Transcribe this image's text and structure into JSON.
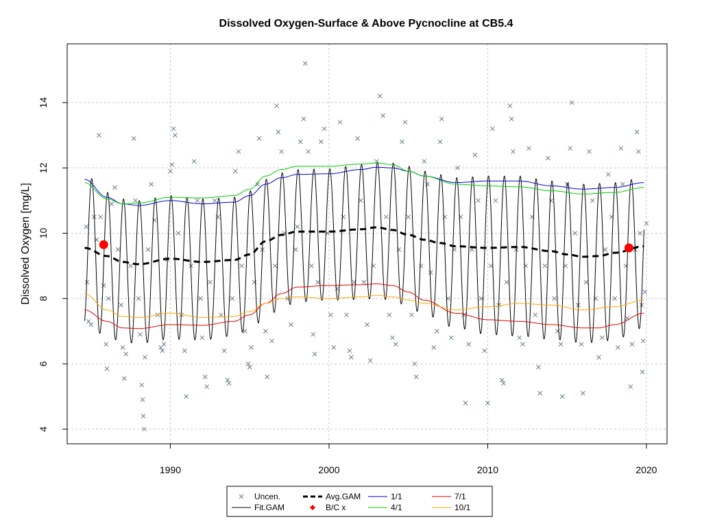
{
  "chart_data": {
    "type": "line",
    "title": "Dissolved Oxygen-Surface & Above Pycnocline at CB5.4",
    "xlabel": "",
    "ylabel": "Dissolved Oxygen [mg/L]",
    "xlim": [
      1983.5,
      2021.3
    ],
    "ylim": [
      3.55,
      15.8
    ],
    "x_ticks": [
      1990,
      2000,
      2010,
      2020
    ],
    "y_ticks": [
      4,
      6,
      8,
      10,
      12,
      14
    ],
    "grid": true,
    "legend_position": "bottom-outside",
    "legend": [
      {
        "label": "Uncen.",
        "style": "cross",
        "color": "#6b7a8a"
      },
      {
        "label": "Fit.GAM",
        "style": "line",
        "color": "#000000"
      },
      {
        "label": "Avg.GAM",
        "style": "dashed-thick",
        "color": "#000000"
      },
      {
        "label": "B/C x",
        "style": "diamond",
        "color": "#ff0000"
      },
      {
        "label": "1/1",
        "style": "line",
        "color": "#0000cc"
      },
      {
        "label": "4/1",
        "style": "line",
        "color": "#00cc00"
      },
      {
        "label": "7/1",
        "style": "line",
        "color": "#dd0000"
      },
      {
        "label": "10/1",
        "style": "line",
        "color": "#ffa500"
      }
    ],
    "colors": {
      "uncen": "#6b7a8a",
      "fit": "#000000",
      "avg": "#000000",
      "bc": "#ff0000",
      "jan": "#0000cc",
      "apr": "#00cc00",
      "jul": "#dd0000",
      "oct": "#ffa500",
      "grid": "#c8c8c8"
    },
    "fit_range": [
      1984.6,
      2019.85
    ],
    "avg_gam": {
      "x": [
        1984.6,
        1986,
        1987,
        1988,
        1990,
        1992,
        1994,
        1995,
        1996,
        1997,
        1998,
        2000,
        2002,
        2003,
        2004,
        2005,
        2006,
        2007,
        2008,
        2010,
        2012,
        2014,
        2015,
        2016,
        2017,
        2018,
        2019.85
      ],
      "y": [
        9.55,
        9.3,
        9.12,
        9.05,
        9.22,
        9.12,
        9.18,
        9.35,
        9.75,
        9.95,
        10.05,
        10.05,
        10.12,
        10.18,
        10.1,
        9.95,
        9.8,
        9.7,
        9.6,
        9.55,
        9.58,
        9.45,
        9.35,
        9.28,
        9.3,
        9.4,
        9.6
      ]
    },
    "series": [
      {
        "name": "1/1",
        "x": [
          1984.6,
          1986,
          1987,
          1988,
          1990,
          1992,
          1994,
          1995,
          1996,
          1997,
          1998,
          2000,
          2002,
          2003,
          2004,
          2005,
          2006,
          2008,
          2010,
          2012,
          2014,
          2016,
          2018,
          2019.85
        ],
        "y": [
          11.65,
          11.1,
          10.9,
          10.85,
          11.0,
          10.9,
          10.95,
          11.15,
          11.5,
          11.7,
          11.8,
          11.82,
          11.95,
          12.02,
          12.0,
          11.9,
          11.75,
          11.55,
          11.6,
          11.6,
          11.45,
          11.35,
          11.4,
          11.55
        ]
      },
      {
        "name": "4/1",
        "x": [
          1984.6,
          1986,
          1987,
          1988,
          1990,
          1992,
          1994,
          1995,
          1996,
          1997,
          1998,
          2000,
          2002,
          2003,
          2004,
          2005,
          2006,
          2008,
          2010,
          2012,
          2014,
          2016,
          2018,
          2019.85
        ],
        "y": [
          11.55,
          11.05,
          10.9,
          10.92,
          11.1,
          11.08,
          11.15,
          11.35,
          11.75,
          11.95,
          12.05,
          12.05,
          12.12,
          12.15,
          12.1,
          11.9,
          11.75,
          11.5,
          11.45,
          11.42,
          11.3,
          11.2,
          11.25,
          11.4
        ]
      },
      {
        "name": "7/1",
        "x": [
          1984.6,
          1986,
          1987,
          1988,
          1990,
          1992,
          1994,
          1995,
          1996,
          1997,
          1998,
          2000,
          2002,
          2003,
          2004,
          2005,
          2006,
          2008,
          2010,
          2012,
          2014,
          2016,
          2017,
          2018,
          2019.85
        ],
        "y": [
          7.65,
          7.3,
          7.1,
          7.08,
          7.2,
          7.18,
          7.3,
          7.5,
          7.85,
          8.15,
          8.35,
          8.4,
          8.42,
          8.45,
          8.4,
          8.2,
          7.95,
          7.55,
          7.35,
          7.3,
          7.2,
          7.1,
          7.1,
          7.2,
          7.55
        ]
      },
      {
        "name": "10/1",
        "x": [
          1984.6,
          1986,
          1987,
          1988,
          1990,
          1992,
          1994,
          1995,
          1996,
          1997,
          1998,
          2000,
          2002,
          2003,
          2004,
          2005,
          2006,
          2008,
          2010,
          2012,
          2014,
          2016,
          2018,
          2019.85
        ],
        "y": [
          8.15,
          7.65,
          7.45,
          7.42,
          7.55,
          7.42,
          7.45,
          7.6,
          7.85,
          8.0,
          8.05,
          8.0,
          8.05,
          8.1,
          8.05,
          7.95,
          7.85,
          7.65,
          7.75,
          7.85,
          7.8,
          7.65,
          7.75,
          7.95
        ]
      }
    ],
    "bc_points": [
      {
        "x": 1985.8,
        "y": 9.65
      },
      {
        "x": 2018.9,
        "y": 9.55
      }
    ],
    "uncen_points": [
      [
        1984.7,
        10.2
      ],
      [
        1984.75,
        8.5
      ],
      [
        1984.85,
        7.3
      ],
      [
        1985.0,
        7.2
      ],
      [
        1985.2,
        10.5
      ],
      [
        1985.35,
        9.8
      ],
      [
        1985.5,
        13.0
      ],
      [
        1985.6,
        10.5
      ],
      [
        1985.8,
        8.4
      ],
      [
        1985.95,
        6.6
      ],
      [
        1986.0,
        5.85
      ],
      [
        1986.1,
        8.0
      ],
      [
        1986.3,
        10.9
      ],
      [
        1986.5,
        11.4
      ],
      [
        1986.7,
        9.5
      ],
      [
        1986.9,
        7.8
      ],
      [
        1987.0,
        6.5
      ],
      [
        1987.1,
        5.55
      ],
      [
        1987.2,
        6.3
      ],
      [
        1987.5,
        9.0
      ],
      [
        1987.7,
        12.9
      ],
      [
        1987.8,
        11.0
      ],
      [
        1988.0,
        8.0
      ],
      [
        1988.1,
        6.9
      ],
      [
        1988.2,
        5.35
      ],
      [
        1988.25,
        4.9
      ],
      [
        1988.3,
        4.4
      ],
      [
        1988.35,
        4.0
      ],
      [
        1988.4,
        6.2
      ],
      [
        1988.6,
        9.5
      ],
      [
        1988.8,
        11.5
      ],
      [
        1989.0,
        10.4
      ],
      [
        1989.2,
        7.5
      ],
      [
        1989.4,
        6.5
      ],
      [
        1989.5,
        6.4
      ],
      [
        1989.6,
        6.6
      ],
      [
        1989.8,
        9.2
      ],
      [
        1990.0,
        11.9
      ],
      [
        1990.1,
        12.1
      ],
      [
        1990.2,
        13.2
      ],
      [
        1990.3,
        13.0
      ],
      [
        1990.5,
        10.0
      ],
      [
        1990.7,
        7.5
      ],
      [
        1990.9,
        6.4
      ],
      [
        1991.0,
        5.0
      ],
      [
        1991.3,
        9.0
      ],
      [
        1991.5,
        12.2
      ],
      [
        1991.7,
        11.0
      ],
      [
        1991.9,
        8.0
      ],
      [
        1992.0,
        6.8
      ],
      [
        1992.2,
        5.6
      ],
      [
        1992.3,
        5.3
      ],
      [
        1992.5,
        8.5
      ],
      [
        1992.8,
        11.0
      ],
      [
        1993.0,
        10.5
      ],
      [
        1993.2,
        7.5
      ],
      [
        1993.4,
        6.4
      ],
      [
        1993.6,
        5.5
      ],
      [
        1993.7,
        5.4
      ],
      [
        1993.9,
        8.0
      ],
      [
        1994.1,
        11.9
      ],
      [
        1994.3,
        12.5
      ],
      [
        1994.5,
        9.0
      ],
      [
        1994.7,
        7.0
      ],
      [
        1994.9,
        6.0
      ],
      [
        1995.0,
        5.9
      ],
      [
        1995.1,
        6.5
      ],
      [
        1995.3,
        8.5
      ],
      [
        1995.5,
        11.5
      ],
      [
        1995.6,
        12.9
      ],
      [
        1995.8,
        9.5
      ],
      [
        1996.0,
        7.0
      ],
      [
        1996.1,
        5.6
      ],
      [
        1996.4,
        6.7
      ],
      [
        1996.6,
        9.0
      ],
      [
        1996.7,
        13.9
      ],
      [
        1996.8,
        13.1
      ],
      [
        1997.0,
        12.5
      ],
      [
        1997.2,
        10.0
      ],
      [
        1997.4,
        8.0
      ],
      [
        1997.6,
        7.2
      ],
      [
        1997.9,
        9.5
      ],
      [
        1998.0,
        10.2
      ],
      [
        1998.2,
        12.8
      ],
      [
        1998.4,
        13.5
      ],
      [
        1998.5,
        15.2
      ],
      [
        1998.7,
        12.5
      ],
      [
        1998.9,
        9.0
      ],
      [
        1999.0,
        6.9
      ],
      [
        1999.1,
        6.3
      ],
      [
        1999.3,
        8.5
      ],
      [
        1999.5,
        12.8
      ],
      [
        1999.7,
        13.2
      ],
      [
        1999.9,
        10.0
      ],
      [
        2000.1,
        7.5
      ],
      [
        2000.3,
        6.5
      ],
      [
        2000.5,
        8.3
      ],
      [
        2000.7,
        13.4
      ],
      [
        2000.9,
        10.5
      ],
      [
        2001.1,
        7.5
      ],
      [
        2001.3,
        6.4
      ],
      [
        2001.4,
        6.2
      ],
      [
        2001.6,
        8.5
      ],
      [
        2001.8,
        12.9
      ],
      [
        2002.0,
        11.0
      ],
      [
        2002.2,
        8.5
      ],
      [
        2002.4,
        7.2
      ],
      [
        2002.6,
        6.1
      ],
      [
        2002.8,
        9.0
      ],
      [
        2003.0,
        12.2
      ],
      [
        2003.2,
        14.2
      ],
      [
        2003.4,
        13.6
      ],
      [
        2003.6,
        10.5
      ],
      [
        2003.8,
        7.5
      ],
      [
        2004.0,
        6.8
      ],
      [
        2004.2,
        6.6
      ],
      [
        2004.4,
        9.5
      ],
      [
        2004.6,
        12.8
      ],
      [
        2004.8,
        13.4
      ],
      [
        2005.0,
        10.5
      ],
      [
        2005.2,
        7.5
      ],
      [
        2005.4,
        6.0
      ],
      [
        2005.5,
        5.6
      ],
      [
        2005.8,
        9.0
      ],
      [
        2006.0,
        12.2
      ],
      [
        2006.2,
        11.5
      ],
      [
        2006.4,
        8.8
      ],
      [
        2006.6,
        6.5
      ],
      [
        2006.8,
        7.0
      ],
      [
        2007.0,
        12.8
      ],
      [
        2007.1,
        13.5
      ],
      [
        2007.3,
        10.5
      ],
      [
        2007.5,
        8.0
      ],
      [
        2007.7,
        6.8
      ],
      [
        2007.9,
        9.5
      ],
      [
        2008.1,
        12.0
      ],
      [
        2008.3,
        10.5
      ],
      [
        2008.5,
        7.5
      ],
      [
        2008.6,
        4.8
      ],
      [
        2008.8,
        6.6
      ],
      [
        2009.0,
        9.5
      ],
      [
        2009.2,
        12.4
      ],
      [
        2009.4,
        11.0
      ],
      [
        2009.6,
        8.0
      ],
      [
        2009.8,
        6.4
      ],
      [
        2010.0,
        4.8
      ],
      [
        2010.2,
        9.0
      ],
      [
        2010.3,
        13.2
      ],
      [
        2010.5,
        11.0
      ],
      [
        2010.7,
        7.8
      ],
      [
        2010.9,
        5.5
      ],
      [
        2011.0,
        5.4
      ],
      [
        2011.2,
        8.5
      ],
      [
        2011.4,
        13.9
      ],
      [
        2011.5,
        13.5
      ],
      [
        2011.6,
        12.5
      ],
      [
        2011.8,
        9.5
      ],
      [
        2012.0,
        6.8
      ],
      [
        2012.2,
        6.6
      ],
      [
        2012.4,
        9.0
      ],
      [
        2012.6,
        12.6
      ],
      [
        2012.8,
        10.5
      ],
      [
        2013.0,
        7.5
      ],
      [
        2013.2,
        5.9
      ],
      [
        2013.3,
        5.1
      ],
      [
        2013.6,
        9.0
      ],
      [
        2013.8,
        12.3
      ],
      [
        2014.0,
        11.0
      ],
      [
        2014.2,
        8.0
      ],
      [
        2014.4,
        7.0
      ],
      [
        2014.6,
        6.6
      ],
      [
        2014.7,
        5.0
      ],
      [
        2014.9,
        9.0
      ],
      [
        2015.0,
        11.5
      ],
      [
        2015.2,
        12.6
      ],
      [
        2015.3,
        14.0
      ],
      [
        2015.5,
        10.0
      ],
      [
        2015.7,
        7.8
      ],
      [
        2015.9,
        6.6
      ],
      [
        2016.0,
        5.1
      ],
      [
        2016.2,
        8.5
      ],
      [
        2016.4,
        12.5
      ],
      [
        2016.6,
        11.0
      ],
      [
        2016.8,
        8.0
      ],
      [
        2017.0,
        6.2
      ],
      [
        2017.2,
        6.8
      ],
      [
        2017.4,
        9.5
      ],
      [
        2017.6,
        11.8
      ],
      [
        2017.8,
        10.5
      ],
      [
        2018.0,
        8.0
      ],
      [
        2018.2,
        6.5
      ],
      [
        2018.4,
        12.6
      ],
      [
        2018.5,
        11.5
      ],
      [
        2018.7,
        9.0
      ],
      [
        2018.8,
        7.4
      ],
      [
        2019.0,
        5.3
      ],
      [
        2019.1,
        6.6
      ],
      [
        2019.3,
        9.5
      ],
      [
        2019.4,
        13.1
      ],
      [
        2019.5,
        12.5
      ],
      [
        2019.6,
        10.0
      ],
      [
        2019.7,
        7.8
      ],
      [
        2019.75,
        5.75
      ],
      [
        2019.8,
        6.7
      ],
      [
        2019.9,
        8.2
      ],
      [
        2020.0,
        10.3
      ]
    ]
  }
}
